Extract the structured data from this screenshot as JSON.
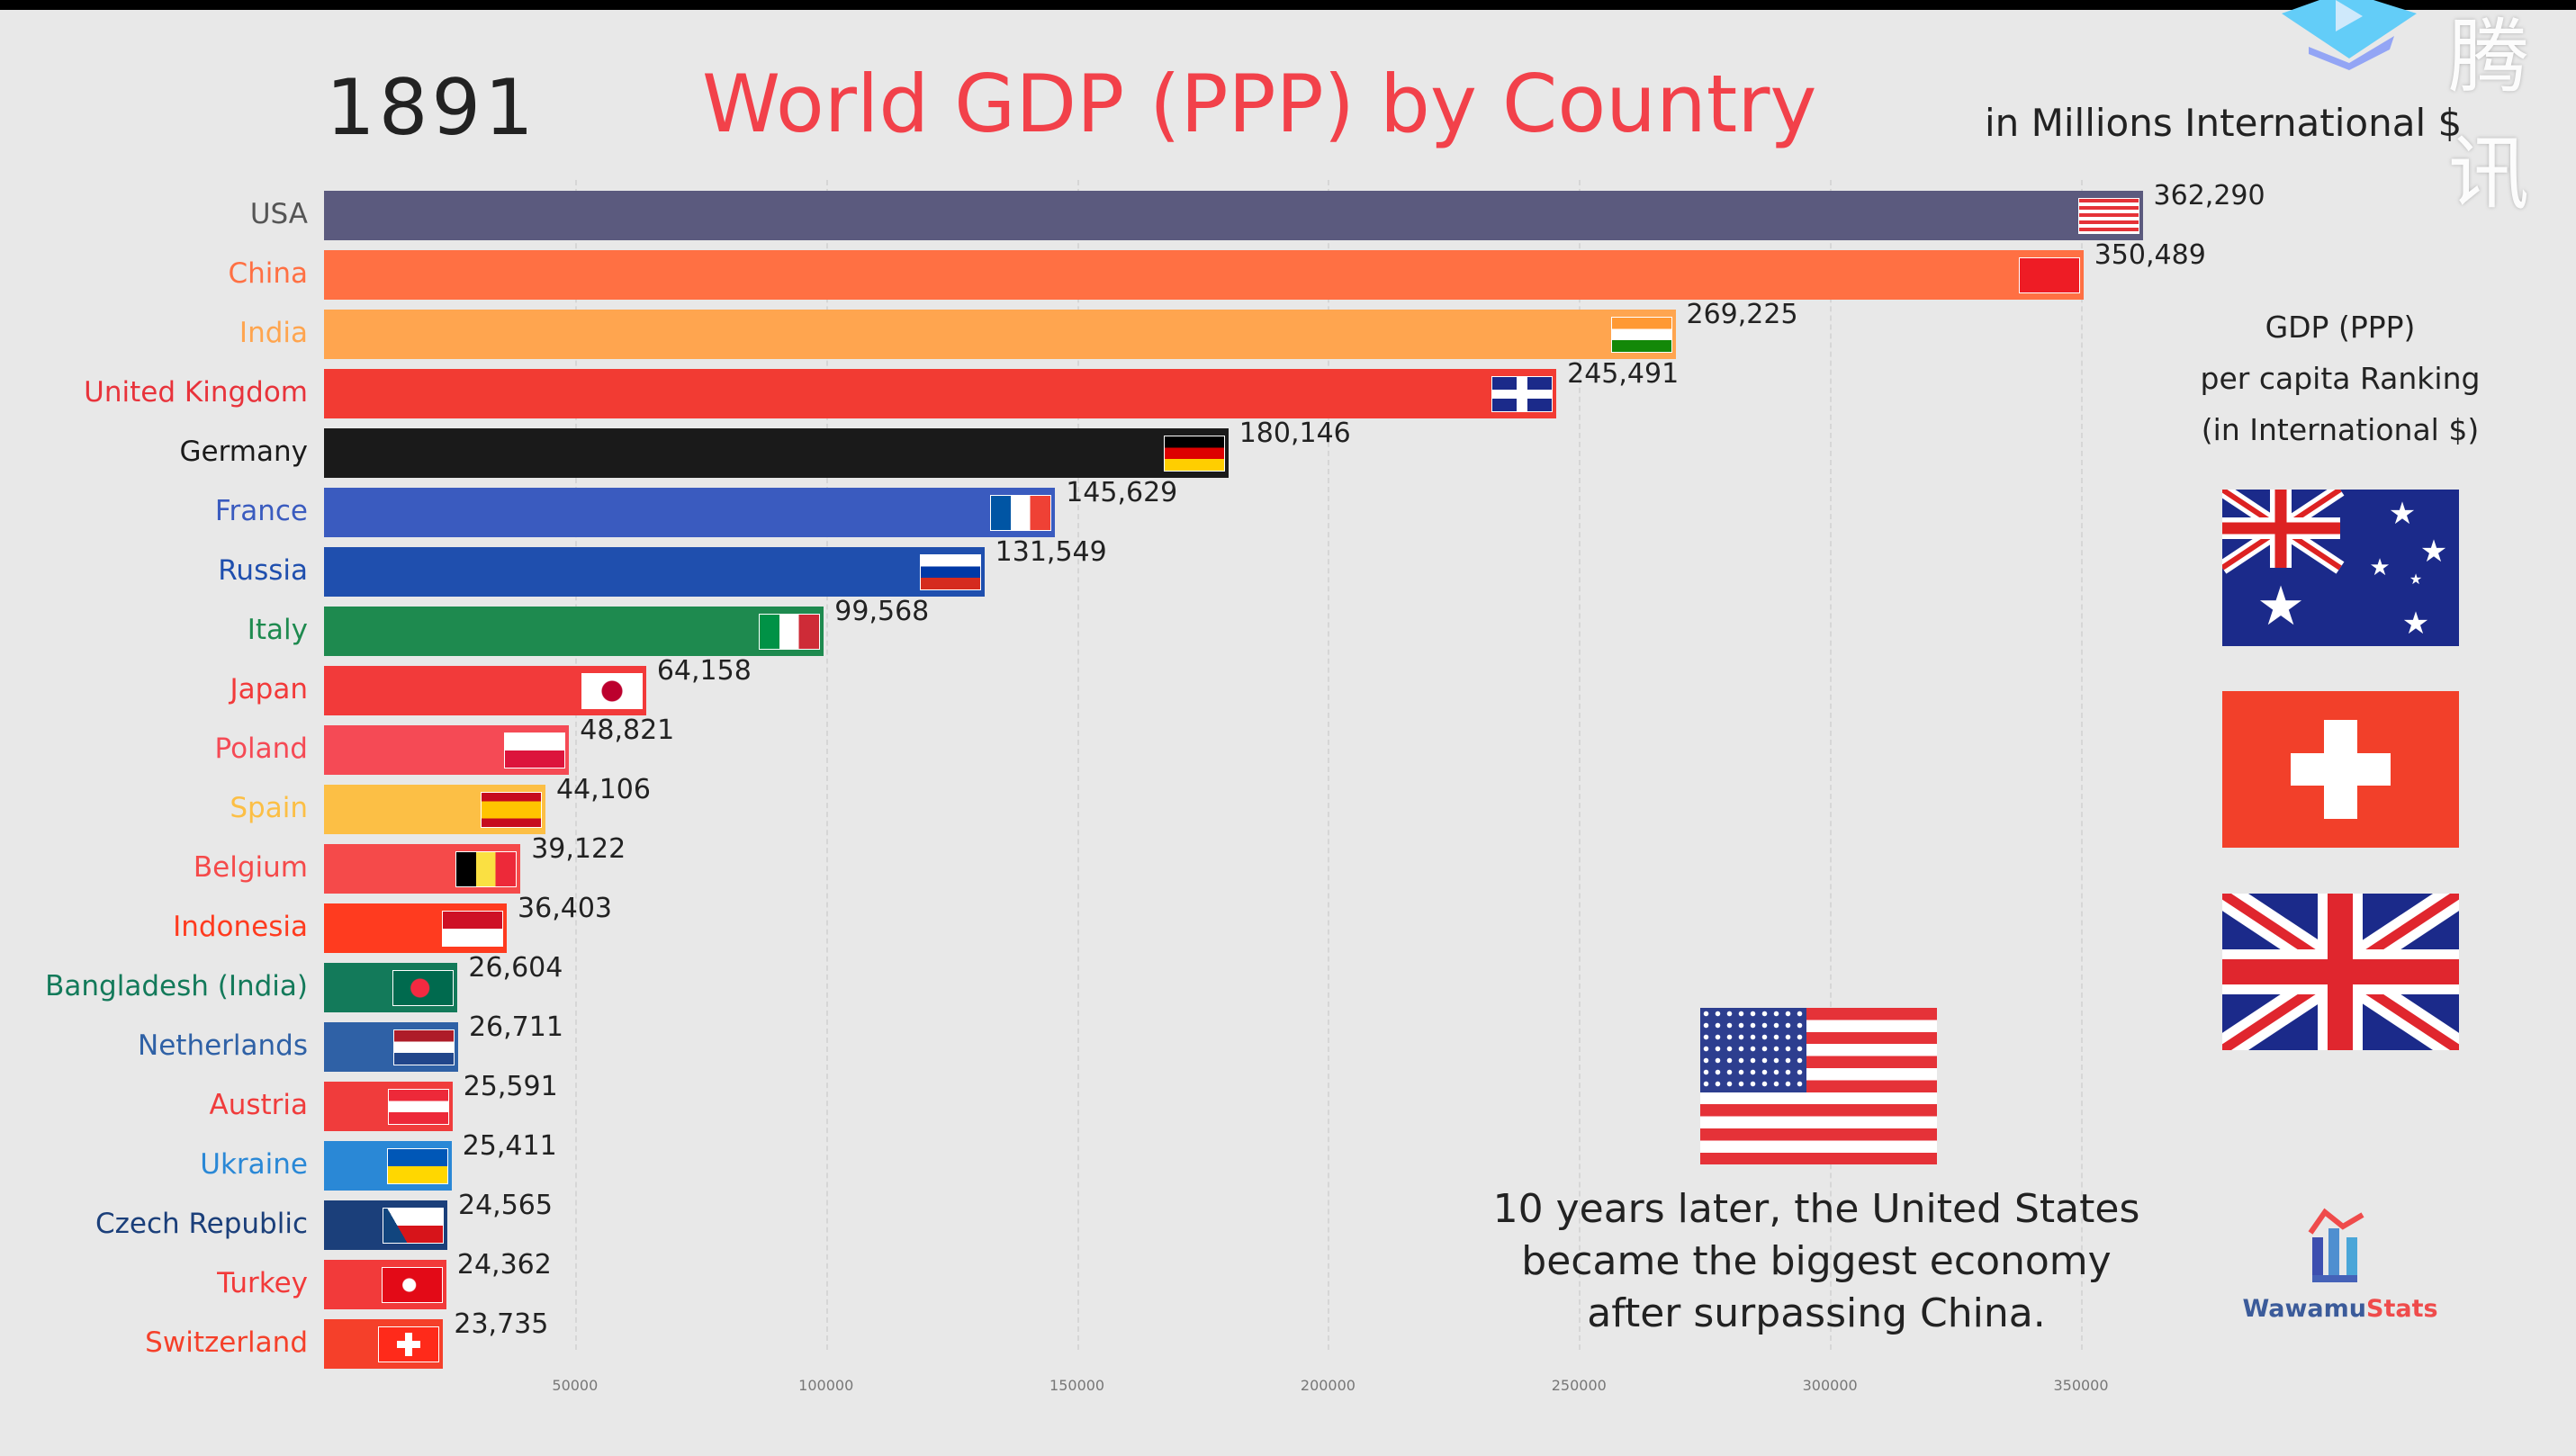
{
  "header": {
    "year": "1891",
    "title": "World GDP (PPP) by Country",
    "subtitle": "in Millions International $"
  },
  "chart_data": {
    "type": "bar",
    "orientation": "horizontal",
    "title": "World GDP (PPP) by Country",
    "xlim": [
      0,
      362290
    ],
    "ticks": [
      50000,
      100000,
      150000,
      200000,
      250000,
      300000,
      350000
    ],
    "tick_labels": [
      "50000",
      "100000",
      "150000",
      "200000",
      "250000",
      "300000",
      "350000"
    ],
    "grid": true,
    "bars": [
      {
        "country": "USA",
        "value": 362290,
        "label": "362,290",
        "color": "#5b5a7e",
        "label_color": "#555555",
        "flag": "us"
      },
      {
        "country": "China",
        "value": 350489,
        "label": "350,489",
        "color": "#ff7043",
        "label_color": "#ff7043",
        "flag": "cn"
      },
      {
        "country": "India",
        "value": 269225,
        "label": "269,225",
        "color": "#ffa54f",
        "label_color": "#ffa54f",
        "flag": "in"
      },
      {
        "country": "United Kingdom",
        "value": 245491,
        "label": "245,491",
        "color": "#f23b33",
        "label_color": "#e8333b",
        "flag": "uk"
      },
      {
        "country": "Germany",
        "value": 180146,
        "label": "180,146",
        "color": "#1a1a1a",
        "label_color": "#1a1a1a",
        "flag": "de"
      },
      {
        "country": "France",
        "value": 145629,
        "label": "145,629",
        "color": "#3a5bbf",
        "label_color": "#3a5bbf",
        "flag": "fr"
      },
      {
        "country": "Russia",
        "value": 131549,
        "label": "131,549",
        "color": "#1f4fae",
        "label_color": "#1f4fae",
        "flag": "ru"
      },
      {
        "country": "Italy",
        "value": 99568,
        "label": "99,568",
        "color": "#1e8a4f",
        "label_color": "#1e8a4f",
        "flag": "it"
      },
      {
        "country": "Japan",
        "value": 64158,
        "label": "64,158",
        "color": "#f23a3a",
        "label_color": "#f23a3a",
        "flag": "jp"
      },
      {
        "country": "Poland",
        "value": 48821,
        "label": "48,821",
        "color": "#f54a55",
        "label_color": "#f54a55",
        "flag": "pl"
      },
      {
        "country": "Spain",
        "value": 44106,
        "label": "44,106",
        "color": "#fcbf45",
        "label_color": "#fcbf45",
        "flag": "es"
      },
      {
        "country": "Belgium",
        "value": 39122,
        "label": "39,122",
        "color": "#f54a4a",
        "label_color": "#f54a4a",
        "flag": "be"
      },
      {
        "country": "Indonesia",
        "value": 36403,
        "label": "36,403",
        "color": "#ff3b1f",
        "label_color": "#ff3b1f",
        "flag": "id"
      },
      {
        "country": "Bangladesh (India)",
        "value": 26604,
        "label": "26,604",
        "color": "#137a5a",
        "label_color": "#137a5a",
        "flag": "bd"
      },
      {
        "country": "Netherlands",
        "value": 26711,
        "label": "26,711",
        "color": "#2f61a6",
        "label_color": "#2f61a6",
        "flag": "nl"
      },
      {
        "country": "Austria",
        "value": 25591,
        "label": "25,591",
        "color": "#f03c3c",
        "label_color": "#f03c3c",
        "flag": "at"
      },
      {
        "country": "Ukraine",
        "value": 25411,
        "label": "25,411",
        "color": "#2a88d6",
        "label_color": "#2a88d6",
        "flag": "ua"
      },
      {
        "country": "Czech Republic",
        "value": 24565,
        "label": "24,565",
        "color": "#1b3f7a",
        "label_color": "#1b3f7a",
        "flag": "cz"
      },
      {
        "country": "Turkey",
        "value": 24362,
        "label": "24,362",
        "color": "#f23a3a",
        "label_color": "#f23a3a",
        "flag": "tr"
      },
      {
        "country": "Switzerland",
        "value": 23735,
        "label": "23,735",
        "color": "#f5402a",
        "label_color": "#f5402a",
        "flag": "ch"
      }
    ]
  },
  "ranking": {
    "title_lines": [
      "GDP (PPP)",
      "per capita Ranking",
      "(in International $)"
    ],
    "flags": [
      "australia-flag",
      "switzerland-flag",
      "united-kingdom-flag"
    ]
  },
  "annotation": {
    "flag": "usa-flag",
    "lines": [
      "10 years later, the United States",
      "became the biggest economy",
      "after surpassing China."
    ]
  },
  "logo": {
    "part1": "Wawamu",
    "part2": "Stats"
  },
  "watermark": {
    "text": "腾讯"
  }
}
